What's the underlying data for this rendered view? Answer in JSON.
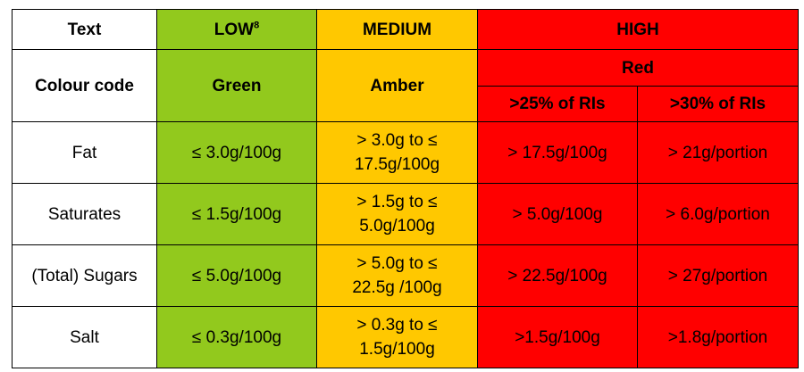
{
  "header": {
    "col_text": "Text",
    "col_low": "LOW",
    "col_low_sup": "8",
    "col_medium": "MEDIUM",
    "col_high": "HIGH"
  },
  "colour_row": {
    "label": "Colour code",
    "green": "Green",
    "amber": "Amber",
    "red": "Red",
    "red_sub1": ">25% of RIs",
    "red_sub2": ">30% of RIs"
  },
  "colors": {
    "green": "#92c91d",
    "amber": "#ffc800",
    "red": "#ff0000"
  },
  "rows": [
    {
      "nutrient": "Fat",
      "low": "≤ 3.0g/100g",
      "medium_line1": "> 3.0g to ≤",
      "medium_line2": "17.5g/100g",
      "high1": "> 17.5g/100g",
      "high2": "> 21g/portion"
    },
    {
      "nutrient": "Saturates",
      "low": "≤ 1.5g/100g",
      "medium_line1": "> 1.5g to ≤",
      "medium_line2": "5.0g/100g",
      "high1": "> 5.0g/100g",
      "high2": "> 6.0g/portion"
    },
    {
      "nutrient": "(Total) Sugars",
      "low": "≤ 5.0g/100g",
      "medium_line1": "> 5.0g to ≤",
      "medium_line2": "22.5g /100g",
      "high1": "> 22.5g/100g",
      "high2": "> 27g/portion"
    },
    {
      "nutrient": "Salt",
      "low": "≤ 0.3g/100g",
      "medium_line1": "> 0.3g to ≤",
      "medium_line2": "1.5g/100g",
      "high1": ">1.5g/100g",
      "high2": ">1.8g/portion"
    }
  ]
}
